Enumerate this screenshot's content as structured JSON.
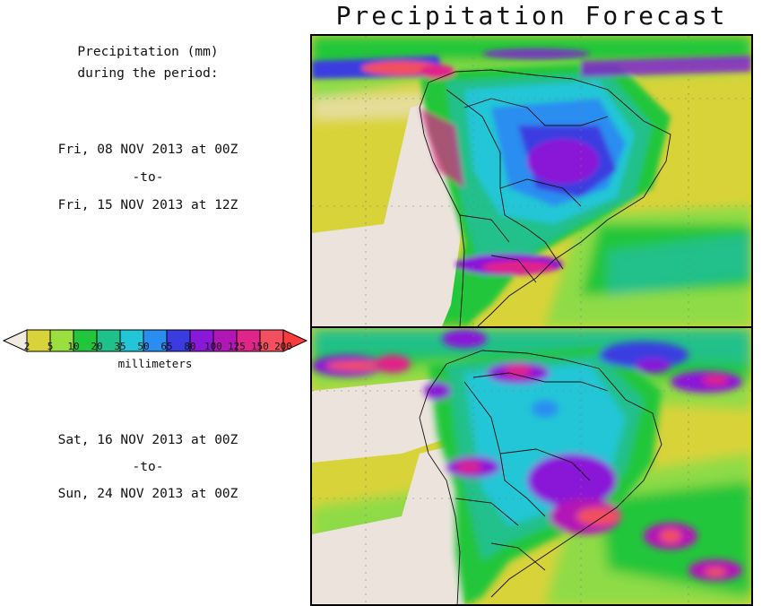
{
  "title": "Precipitation Forecast",
  "description": {
    "line1": "Precipitation (mm)",
    "line2": "during the period:"
  },
  "period1": {
    "start": "Fri, 08 NOV 2013 at 00Z",
    "sep": "-to-",
    "end": "Fri, 15 NOV 2013 at 12Z"
  },
  "period2": {
    "start": "Sat, 16 NOV 2013 at 00Z",
    "sep": "-to-",
    "end": "Sun, 24 NOV 2013 at 00Z"
  },
  "legend": {
    "units": "millimeters",
    "ticks": [
      "2",
      "5",
      "10",
      "20",
      "35",
      "50",
      "65",
      "80",
      "100",
      "125",
      "150",
      "200"
    ],
    "colors": [
      "#d9d33a",
      "#9ade3f",
      "#21c63b",
      "#20c08a",
      "#22c6d6",
      "#2a8df0",
      "#3a3ce0",
      "#8a18d8",
      "#b316b6",
      "#e0248a",
      "#f2505e"
    ],
    "under_color": "#f1ebe0",
    "over_color": "#ff3a3a"
  },
  "colors": {
    "land_dry": "#ece4dc",
    "ocean_light": "#dcd33e",
    "ocean_green": "#8edb47"
  }
}
